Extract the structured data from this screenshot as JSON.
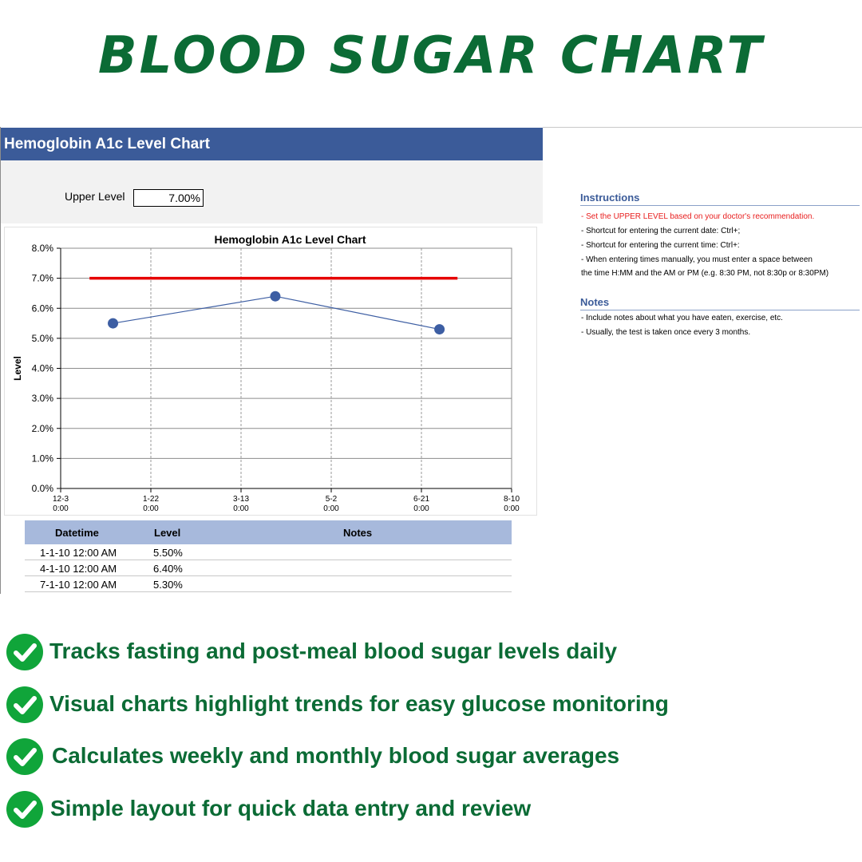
{
  "page": {
    "title": "BLOOD SUGAR CHART"
  },
  "sheet": {
    "header": "Hemoglobin A1c Level Chart",
    "upper_label": "Upper Level",
    "upper_value": "7.00%"
  },
  "colors": {
    "brand_green": "#0b6b35",
    "header_blue": "#3b5b99",
    "series_blue": "#3d5ea3",
    "upper_red": "#e60000",
    "table_head": "#a7b9dc"
  },
  "chart_data": {
    "type": "line",
    "title": "Hemoglobin A1c Level Chart",
    "xlabel": "",
    "ylabel": "Level",
    "x_ticks": [
      [
        "12-3",
        "0:00"
      ],
      [
        "1-22",
        "0:00"
      ],
      [
        "3-13",
        "0:00"
      ],
      [
        "5-2",
        "0:00"
      ],
      [
        "6-21",
        "0:00"
      ],
      [
        "8-10",
        "0:00"
      ]
    ],
    "xlim": [
      "2009-12-03",
      "2010-08-10"
    ],
    "ylim": [
      0,
      8
    ],
    "y_ticks": [
      "0.0%",
      "1.0%",
      "2.0%",
      "3.0%",
      "4.0%",
      "5.0%",
      "6.0%",
      "7.0%",
      "8.0%"
    ],
    "series": [
      {
        "x": [
          "2010-01-01",
          "2010-04-01",
          "2010-07-01"
        ],
        "values": [
          5.5,
          6.4,
          5.3
        ]
      },
      {
        "x": [
          "2009-12-19",
          "2010-07-11"
        ],
        "values": [
          7.0,
          7.0
        ]
      }
    ],
    "grid": true,
    "legend": "none"
  },
  "table": {
    "headers": [
      "Datetime",
      "Level",
      "Notes"
    ],
    "rows": [
      {
        "datetime": "1-1-10 12:00 AM",
        "level": "5.50%",
        "notes": ""
      },
      {
        "datetime": "4-1-10 12:00 AM",
        "level": "6.40%",
        "notes": ""
      },
      {
        "datetime": "7-1-10 12:00 AM",
        "level": "5.30%",
        "notes": ""
      }
    ]
  },
  "instructions": {
    "heading": "Instructions",
    "lines": [
      " - Set the UPPER LEVEL based on your doctor's recommendation.",
      " - Shortcut for entering the current date: Ctrl+;",
      " - Shortcut for entering the current time: Ctrl+:",
      " - When entering times manually, you must enter a space between",
      "the time H:MM and the AM or PM (e.g. 8:30 PM, not 8:30p or 8:30PM)"
    ]
  },
  "notes": {
    "heading": "Notes",
    "lines": [
      " - Include notes about what you have eaten, exercise, etc.",
      " - Usually, the test is taken once every 3 months."
    ]
  },
  "features": [
    {
      "icon": "check-circle-icon",
      "text": "Tracks fasting and post-meal blood sugar levels daily"
    },
    {
      "icon": "check-circle-icon",
      "text": "Visual charts highlight trends for easy glucose monitoring"
    },
    {
      "icon": "check-circle-icon",
      "text": "Calculates weekly and monthly blood sugar averages"
    },
    {
      "icon": "check-circle-icon",
      "text": "Simple layout for quick data entry and review"
    }
  ]
}
